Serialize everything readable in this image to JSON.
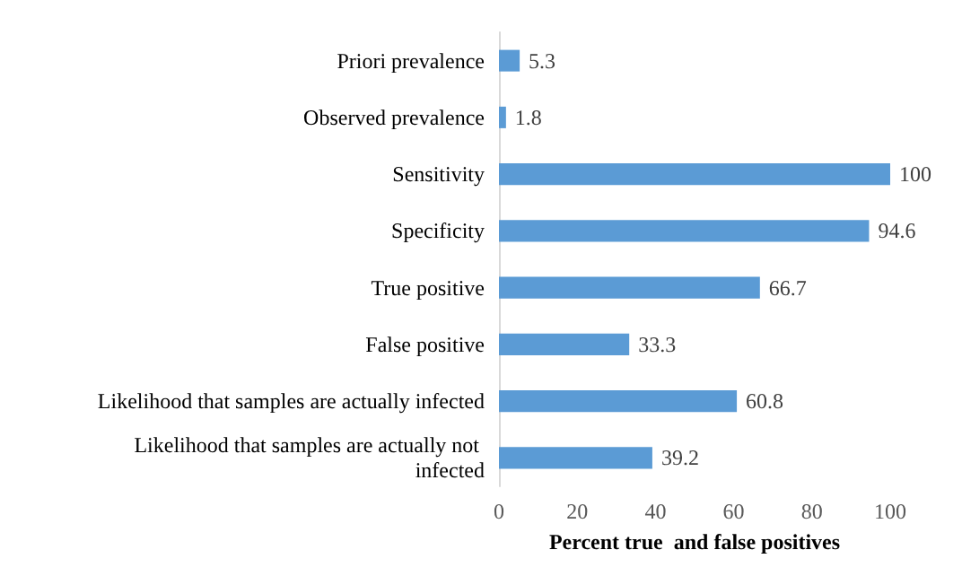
{
  "chart_data": {
    "type": "bar",
    "orientation": "horizontal",
    "xlabel": "Percent true  and false positives",
    "categories": [
      "Priori prevalence",
      "Observed prevalence",
      "Sensitivity",
      "Specificity",
      "True positive",
      "False positive",
      "Likelihood that samples are actually infected",
      "Likelihood that samples are actually not infected"
    ],
    "values": [
      5.3,
      1.8,
      100,
      94.6,
      66.7,
      33.3,
      60.8,
      39.2
    ],
    "color": "#5b9bd5",
    "data_labels": true,
    "xlim": [
      0,
      100
    ],
    "xticks": [
      0,
      20,
      40,
      60,
      80,
      100
    ],
    "grid": false
  }
}
